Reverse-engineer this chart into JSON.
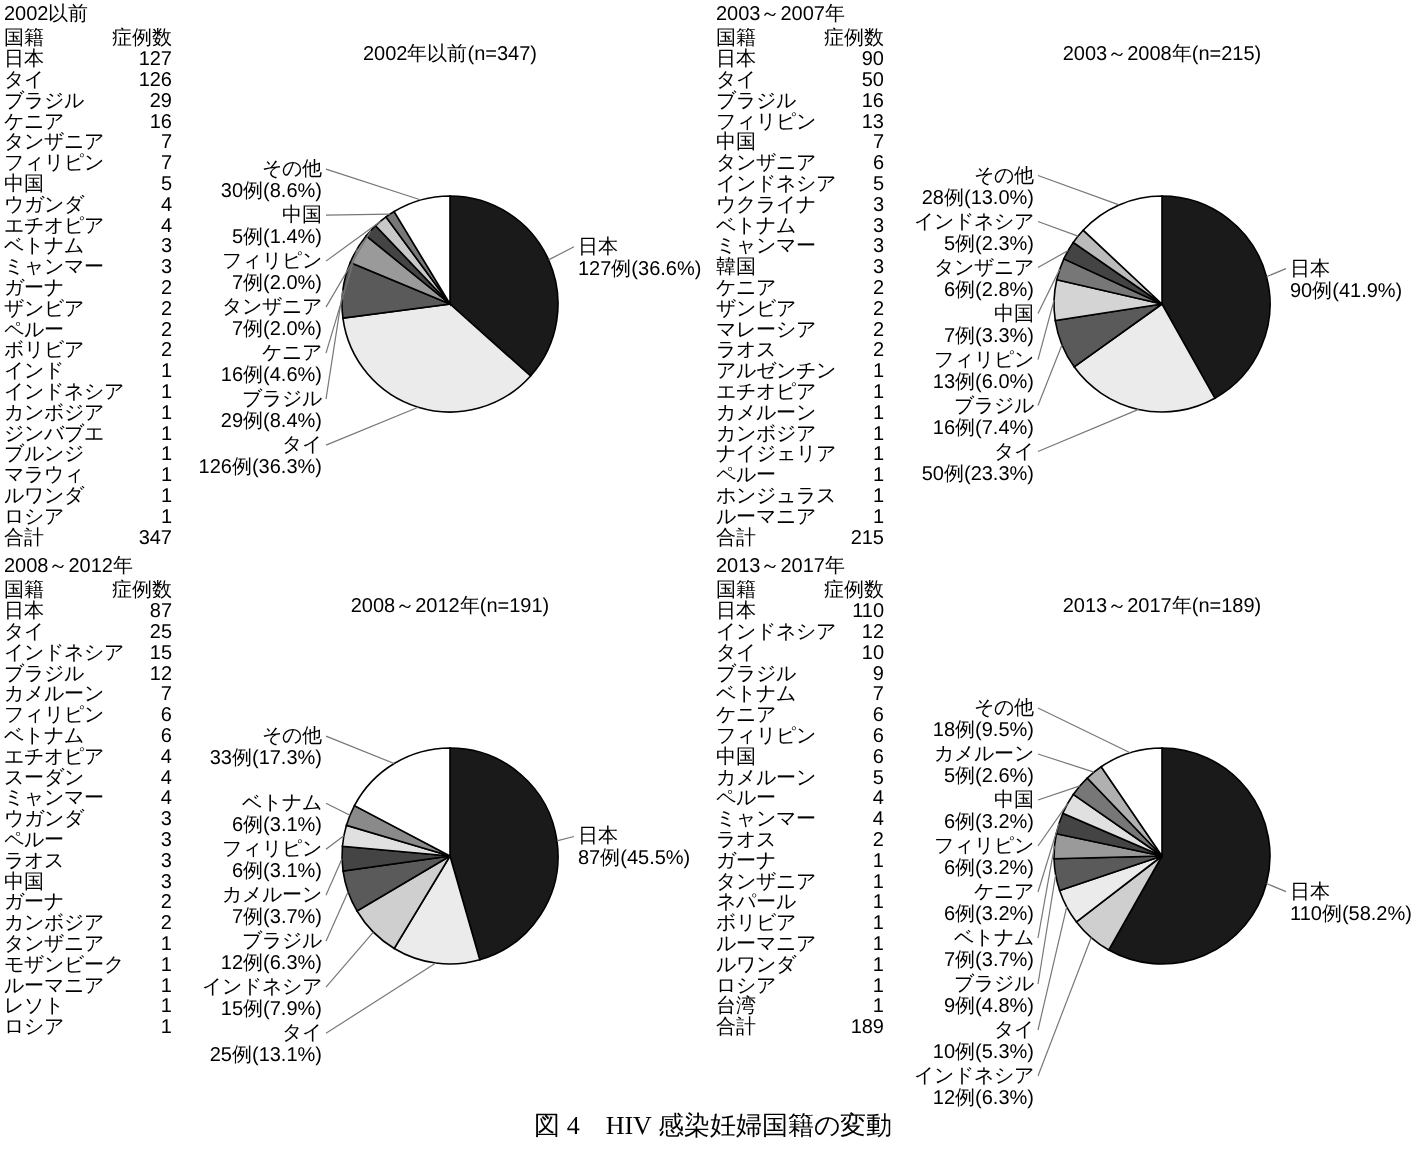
{
  "chart_data": [
    {
      "type": "other",
      "data_labels": true,
      "title": "2002以前",
      "xlabel": "国籍",
      "ylabel": "症例数",
      "categories": [
        "日本",
        "タイ",
        "ブラジル",
        "ケニア",
        "タンザニア",
        "フィリピン",
        "中国",
        "ウガンダ",
        "エチオピア",
        "ベトナム",
        "ミャンマー",
        "ガーナ",
        "ザンビア",
        "ペルー",
        "ボリビア",
        "インド",
        "インドネシア",
        "カンボジア",
        "ジンバブエ",
        "ブルンジ",
        "マラウィ",
        "ルワンダ",
        "ロシア",
        "合計"
      ],
      "values": [
        127,
        126,
        29,
        16,
        7,
        7,
        5,
        4,
        4,
        3,
        3,
        2,
        2,
        2,
        2,
        1,
        1,
        1,
        1,
        1,
        1,
        1,
        1,
        347
      ]
    },
    {
      "type": "pie",
      "title": "2002年以前(n=347)",
      "categories": [
        "日本",
        "タイ",
        "ブラジル",
        "ケニア",
        "タンザニア",
        "フィリピン",
        "中国",
        "その他"
      ],
      "values": [
        127,
        126,
        29,
        16,
        7,
        7,
        5,
        30
      ],
      "value_labels": [
        "127例(36.6%)",
        "126例(36.3%)",
        "29例(8.4%)",
        "16例(4.6%)",
        "7例(2.0%)",
        "7例(2.0%)",
        "5例(1.4%)",
        "30例(8.6%)"
      ],
      "colors": [
        "#1a1a1a",
        "#ebebeb",
        "#5a5a5a",
        "#9a9a9a",
        "#444444",
        "#c8c8c8",
        "#777777",
        "#ffffff"
      ]
    },
    {
      "type": "other",
      "data_labels": true,
      "title": "2003～2007年",
      "xlabel": "国籍",
      "ylabel": "症例数",
      "categories": [
        "日本",
        "タイ",
        "ブラジル",
        "フィリピン",
        "中国",
        "タンザニア",
        "インドネシア",
        "ウクライナ",
        "ベトナム",
        "ミャンマー",
        "韓国",
        "ケニア",
        "ザンビア",
        "マレーシア",
        "ラオス",
        "アルゼンチン",
        "エチオピア",
        "カメルーン",
        "カンボジア",
        "ナイジェリア",
        "ペルー",
        "ホンジュラス",
        "ルーマニア",
        "合計"
      ],
      "values": [
        90,
        50,
        16,
        13,
        7,
        6,
        5,
        3,
        3,
        3,
        3,
        2,
        2,
        2,
        2,
        1,
        1,
        1,
        1,
        1,
        1,
        1,
        1,
        215
      ]
    },
    {
      "type": "pie",
      "title": "2003～2008年(n=215)",
      "categories": [
        "日本",
        "タイ",
        "ブラジル",
        "フィリピン",
        "中国",
        "タンザニア",
        "インドネシア",
        "その他"
      ],
      "values": [
        90,
        50,
        16,
        13,
        7,
        6,
        5,
        28
      ],
      "value_labels": [
        "90例(41.9%)",
        "50例(23.3%)",
        "16例(7.4%)",
        "13例(6.0%)",
        "7例(3.3%)",
        "6例(2.8%)",
        "5例(2.3%)",
        "28例(13.0%)"
      ],
      "colors": [
        "#1a1a1a",
        "#ebebeb",
        "#5a5a5a",
        "#d4d4d4",
        "#777777",
        "#444444",
        "#bbbbbb",
        "#ffffff"
      ]
    },
    {
      "type": "other",
      "data_labels": true,
      "title": "2008～2012年",
      "xlabel": "国籍",
      "ylabel": "症例数",
      "categories": [
        "日本",
        "タイ",
        "インドネシア",
        "ブラジル",
        "カメルーン",
        "フィリピン",
        "ベトナム",
        "エチオピア",
        "スーダン",
        "ミャンマー",
        "ウガンダ",
        "ペルー",
        "ラオス",
        "中国",
        "ガーナ",
        "カンボジア",
        "タンザニア",
        "モザンビーク",
        "ルーマニア",
        "レソト",
        "ロシア"
      ],
      "values": [
        87,
        25,
        15,
        12,
        7,
        6,
        6,
        4,
        4,
        4,
        3,
        3,
        3,
        3,
        2,
        2,
        1,
        1,
        1,
        1,
        1
      ]
    },
    {
      "type": "pie",
      "title": "2008～2012年(n=191)",
      "categories": [
        "日本",
        "タイ",
        "インドネシア",
        "ブラジル",
        "カメルーン",
        "フィリピン",
        "ベトナム",
        "その他"
      ],
      "values": [
        87,
        25,
        15,
        12,
        7,
        6,
        6,
        33
      ],
      "value_labels": [
        "87例(45.5%)",
        "25例(13.1%)",
        "15例(7.9%)",
        "12例(6.3%)",
        "7例(3.7%)",
        "6例(3.1%)",
        "6例(3.1%)",
        "33例(17.3%)"
      ],
      "colors": [
        "#1a1a1a",
        "#ebebeb",
        "#cfcfcf",
        "#5a5a5a",
        "#444444",
        "#e0e0e0",
        "#8a8a8a",
        "#ffffff"
      ]
    },
    {
      "type": "other",
      "data_labels": true,
      "title": "2013～2017年",
      "xlabel": "国籍",
      "ylabel": "症例数",
      "categories": [
        "日本",
        "インドネシア",
        "タイ",
        "ブラジル",
        "ベトナム",
        "ケニア",
        "フィリピン",
        "中国",
        "カメルーン",
        "ペルー",
        "ミャンマー",
        "ラオス",
        "ガーナ",
        "タンザニア",
        "ネパール",
        "ボリビア",
        "ルーマニア",
        "ルワンダ",
        "ロシア",
        "台湾",
        "合計"
      ],
      "values": [
        110,
        12,
        10,
        9,
        7,
        6,
        6,
        6,
        5,
        4,
        4,
        2,
        1,
        1,
        1,
        1,
        1,
        1,
        1,
        1,
        189
      ]
    },
    {
      "type": "pie",
      "title": "2013～2017年(n=189)",
      "categories": [
        "日本",
        "インドネシア",
        "タイ",
        "ブラジル",
        "ベトナム",
        "ケニア",
        "フィリピン",
        "中国",
        "カメルーン",
        "その他"
      ],
      "values": [
        110,
        12,
        10,
        9,
        7,
        6,
        6,
        6,
        5,
        18
      ],
      "value_labels": [
        "110例(58.2%)",
        "12例(6.3%)",
        "10例(5.3%)",
        "9例(4.8%)",
        "7例(3.7%)",
        "6例(3.2%)",
        "6例(3.2%)",
        "6例(3.2%)",
        "5例(2.6%)",
        "18例(9.5%)"
      ],
      "colors": [
        "#1a1a1a",
        "#cfcfcf",
        "#ebebeb",
        "#5a5a5a",
        "#9a9a9a",
        "#444444",
        "#e0e0e0",
        "#777777",
        "#b0b0b0",
        "#ffffff"
      ],
      "annotations": [
        "図 4　HIV 感染妊婦国籍の変動"
      ]
    }
  ]
}
